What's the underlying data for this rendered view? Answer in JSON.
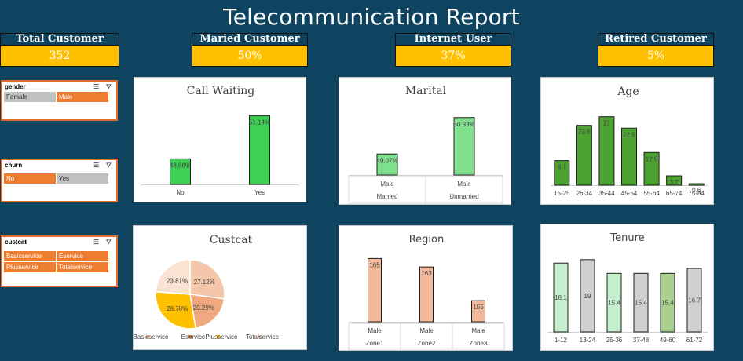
{
  "title": "Telecommunication Report",
  "kpis": [
    {
      "label": "Total Customer",
      "value": "352"
    },
    {
      "label": "Maried Customer",
      "value": "50%"
    },
    {
      "label": "Internet User",
      "value": "37%"
    },
    {
      "label": "Retired Customer",
      "value": "5%"
    }
  ],
  "slicers": [
    {
      "title": "gender",
      "items": [
        {
          "label": "Female",
          "selected": false
        },
        {
          "label": "Male",
          "selected": true
        }
      ]
    },
    {
      "title": "churn",
      "items": [
        {
          "label": "No",
          "selected": true
        },
        {
          "label": "Yes",
          "selected": false
        }
      ]
    },
    {
      "title": "custcat",
      "items": [
        {
          "label": "Basicservice",
          "selected": true
        },
        {
          "label": "Eservice",
          "selected": true
        },
        {
          "label": "Plusservice",
          "selected": true
        },
        {
          "label": "Totalservice",
          "selected": true
        }
      ]
    }
  ],
  "chart_data": [
    {
      "id": "call-waiting",
      "type": "bar",
      "title": "Call Waiting",
      "categories": [
        "No",
        "Yes"
      ],
      "values": [
        48.86,
        51.14
      ],
      "labels": [
        "48.86%",
        "51.14%"
      ],
      "ylim": [
        47.5,
        51.5
      ],
      "color": "#3ecf55"
    },
    {
      "id": "marital",
      "type": "bar",
      "title": "Marital",
      "categories": [
        "Male",
        "Male"
      ],
      "groups": [
        "Married",
        "Unmarried"
      ],
      "values": [
        49.07,
        50.93
      ],
      "labels": [
        "49.07%",
        "50.93%"
      ],
      "ylim": [
        48.0,
        51.2
      ],
      "color": "#7fe08e"
    },
    {
      "id": "age",
      "type": "bar",
      "title": "Age",
      "categories": [
        "15-25",
        "26-34",
        "35-44",
        "45-54",
        "55-64",
        "65-74",
        "75-84"
      ],
      "values": [
        9.7,
        23.6,
        27,
        22.5,
        12.9,
        3.7,
        0.6
      ],
      "labels": [
        "9.7",
        "23.6",
        "27",
        "22.5",
        "12.9",
        "3.7",
        "0.6"
      ],
      "ylim": [
        0,
        30
      ],
      "color": "#4ca331"
    },
    {
      "id": "custcat",
      "type": "pie",
      "title": "Custcat",
      "categories": [
        "Basicservice",
        "Eservice",
        "Plusservice",
        "Totalservice"
      ],
      "values": [
        27.12,
        20.29,
        28.78,
        23.81
      ],
      "labels": [
        "27.12%",
        "20.29%",
        "28.78%",
        "23.81%"
      ],
      "colors": [
        "#f4c7aa",
        "#f0a87e",
        "#ffc000",
        "#fbe3d4"
      ],
      "legend_colors": [
        "#f4b183",
        "#ed7d31",
        "#ffc000",
        "#f8cbad"
      ]
    },
    {
      "id": "region",
      "type": "bar",
      "title": "Region",
      "categories": [
        "Male",
        "Male",
        "Male"
      ],
      "groups": [
        "Zone1",
        "Zone2",
        "Zone3"
      ],
      "values": [
        165,
        163,
        155
      ],
      "labels": [
        "165",
        "163",
        "155"
      ],
      "ylim": [
        150,
        166
      ],
      "color": "#f4b89a"
    },
    {
      "id": "tenure",
      "type": "bar",
      "title": "Tenure",
      "categories": [
        "1-12",
        "13-24",
        "25-36",
        "37-48",
        "49-60",
        "61-72"
      ],
      "values": [
        18.1,
        19,
        15.4,
        15.4,
        15.4,
        16.7
      ],
      "labels": [
        "18.1",
        "19",
        "15.4",
        "15.4",
        "15.4",
        "16.7"
      ],
      "ylim": [
        0,
        20
      ],
      "colors": [
        "#c6efce",
        "#d0d0d0",
        "#c6efce",
        "#d0d0d0",
        "#a9d08e",
        "#d0d0d0"
      ]
    }
  ]
}
